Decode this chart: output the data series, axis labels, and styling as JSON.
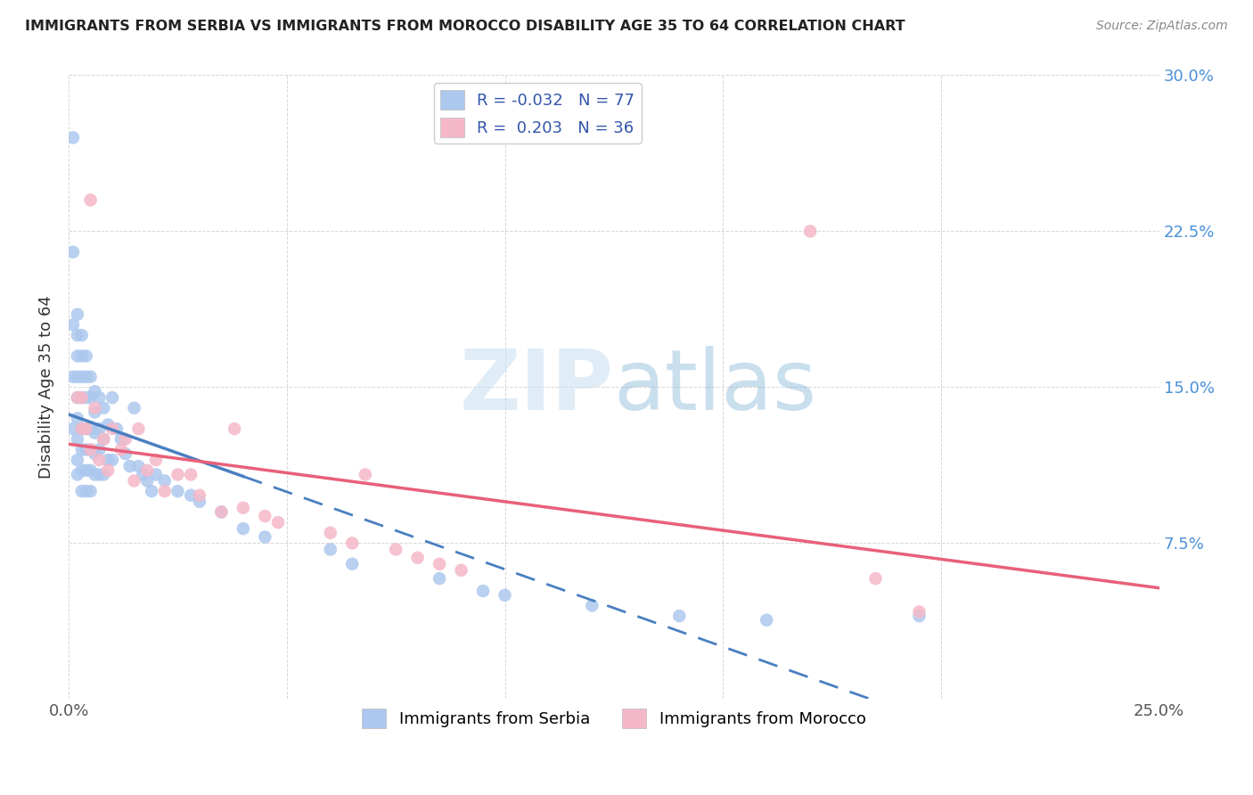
{
  "title": "IMMIGRANTS FROM SERBIA VS IMMIGRANTS FROM MOROCCO DISABILITY AGE 35 TO 64 CORRELATION CHART",
  "source": "Source: ZipAtlas.com",
  "ylabel": "Disability Age 35 to 64",
  "xlim": [
    0.0,
    0.25
  ],
  "ylim": [
    0.0,
    0.3
  ],
  "serbia_color": "#adc8ee",
  "morocco_color": "#f5b8c8",
  "serbia_line_color": "#4a7fc1",
  "morocco_line_color": "#e8607a",
  "serbia_R": -0.032,
  "serbia_N": 77,
  "morocco_R": 0.203,
  "morocco_N": 36,
  "watermark_zip": "ZIP",
  "watermark_atlas": "atlas",
  "right_tick_color": "#4a90d9",
  "serbia_x": [
    0.001,
    0.001,
    0.001,
    0.001,
    0.001,
    0.002,
    0.002,
    0.002,
    0.002,
    0.002,
    0.002,
    0.002,
    0.002,
    0.002,
    0.003,
    0.003,
    0.003,
    0.003,
    0.003,
    0.003,
    0.003,
    0.003,
    0.004,
    0.004,
    0.004,
    0.004,
    0.004,
    0.004,
    0.004,
    0.005,
    0.005,
    0.005,
    0.005,
    0.005,
    0.005,
    0.006,
    0.006,
    0.006,
    0.006,
    0.006,
    0.007,
    0.007,
    0.007,
    0.007,
    0.008,
    0.008,
    0.008,
    0.009,
    0.009,
    0.01,
    0.01,
    0.011,
    0.012,
    0.013,
    0.014,
    0.015,
    0.016,
    0.017,
    0.018,
    0.019,
    0.02,
    0.022,
    0.025,
    0.028,
    0.03,
    0.035,
    0.04,
    0.045,
    0.06,
    0.065,
    0.085,
    0.095,
    0.1,
    0.12,
    0.14,
    0.16,
    0.195
  ],
  "serbia_y": [
    0.27,
    0.215,
    0.18,
    0.155,
    0.13,
    0.185,
    0.175,
    0.165,
    0.155,
    0.145,
    0.135,
    0.125,
    0.115,
    0.108,
    0.175,
    0.165,
    0.155,
    0.145,
    0.13,
    0.12,
    0.11,
    0.1,
    0.165,
    0.155,
    0.145,
    0.13,
    0.12,
    0.11,
    0.1,
    0.155,
    0.145,
    0.13,
    0.12,
    0.11,
    0.1,
    0.148,
    0.138,
    0.128,
    0.118,
    0.108,
    0.145,
    0.13,
    0.12,
    0.108,
    0.14,
    0.125,
    0.108,
    0.132,
    0.115,
    0.145,
    0.115,
    0.13,
    0.125,
    0.118,
    0.112,
    0.14,
    0.112,
    0.108,
    0.105,
    0.1,
    0.108,
    0.105,
    0.1,
    0.098,
    0.095,
    0.09,
    0.082,
    0.078,
    0.072,
    0.065,
    0.058,
    0.052,
    0.05,
    0.045,
    0.04,
    0.038,
    0.04
  ],
  "morocco_x": [
    0.002,
    0.003,
    0.003,
    0.004,
    0.005,
    0.005,
    0.006,
    0.007,
    0.008,
    0.009,
    0.01,
    0.012,
    0.013,
    0.015,
    0.016,
    0.018,
    0.02,
    0.022,
    0.025,
    0.028,
    0.03,
    0.035,
    0.038,
    0.04,
    0.045,
    0.048,
    0.06,
    0.065,
    0.068,
    0.075,
    0.08,
    0.085,
    0.09,
    0.17,
    0.185,
    0.195
  ],
  "morocco_y": [
    0.145,
    0.145,
    0.13,
    0.13,
    0.24,
    0.12,
    0.14,
    0.115,
    0.125,
    0.11,
    0.13,
    0.12,
    0.125,
    0.105,
    0.13,
    0.11,
    0.115,
    0.1,
    0.108,
    0.108,
    0.098,
    0.09,
    0.13,
    0.092,
    0.088,
    0.085,
    0.08,
    0.075,
    0.108,
    0.072,
    0.068,
    0.065,
    0.062,
    0.225,
    0.058,
    0.042
  ]
}
